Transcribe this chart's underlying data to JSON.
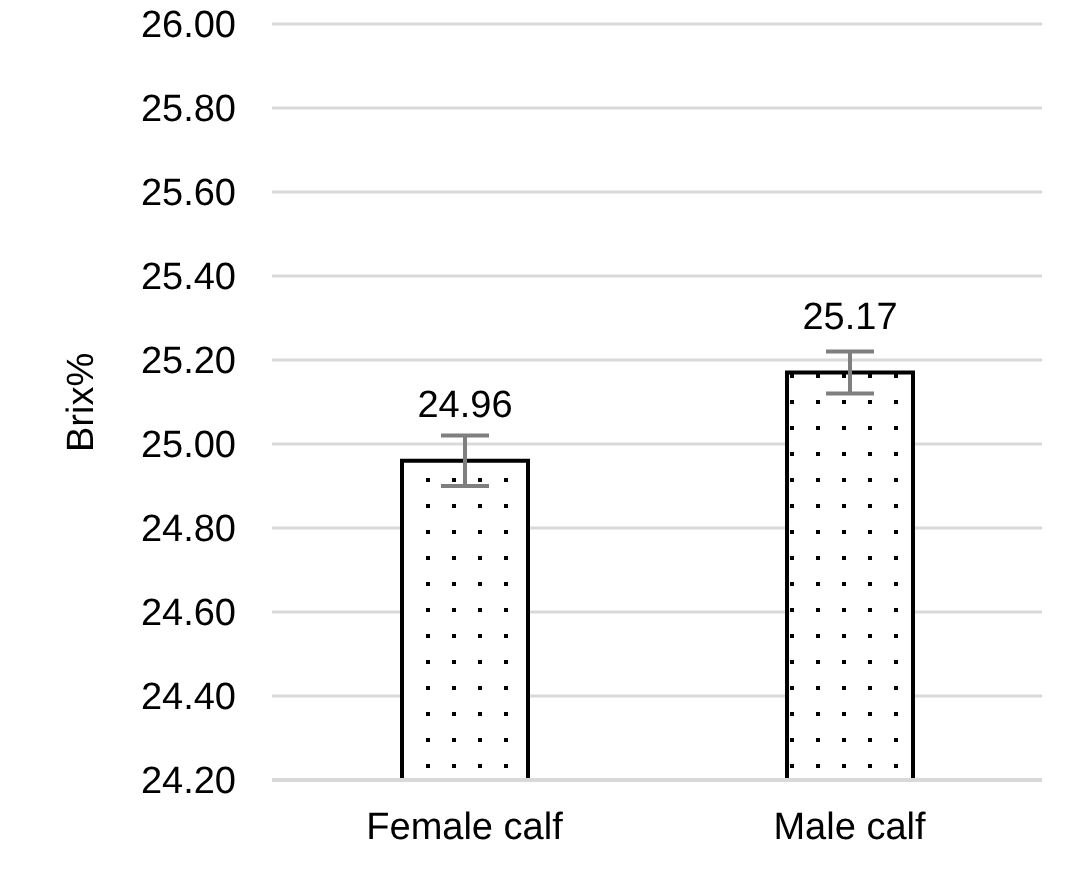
{
  "chart_data": {
    "type": "bar",
    "ylabel": "Brix%",
    "categories": [
      "Female calf",
      "Male calf"
    ],
    "values": [
      24.96,
      25.17
    ],
    "errors": [
      0.06,
      0.05
    ],
    "color": "#000000",
    "ylim": [
      24.2,
      26.0
    ],
    "yticks": [
      {
        "value": 24.2,
        "label": "24.20"
      },
      {
        "value": 24.4,
        "label": "24.40"
      },
      {
        "value": 24.6,
        "label": "24.60"
      },
      {
        "value": 24.8,
        "label": "24.80"
      },
      {
        "value": 25.0,
        "label": "25.00"
      },
      {
        "value": 25.2,
        "label": "25.20"
      },
      {
        "value": 25.4,
        "label": "25.40"
      },
      {
        "value": 25.6,
        "label": "25.60"
      },
      {
        "value": 25.8,
        "label": "25.80"
      },
      {
        "value": 26.0,
        "label": "26.00"
      }
    ],
    "grid": "y",
    "data_labels": true
  }
}
